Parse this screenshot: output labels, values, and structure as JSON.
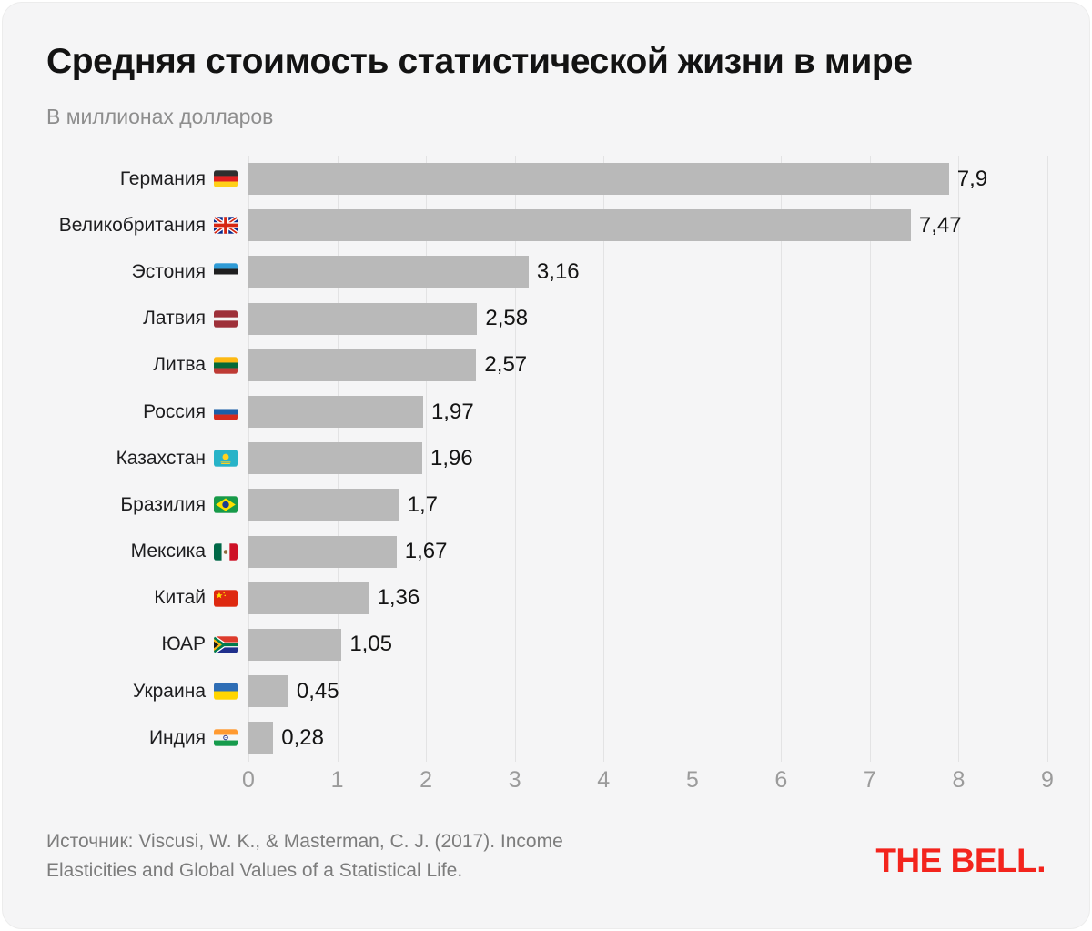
{
  "chart_data": {
    "type": "bar",
    "orientation": "horizontal",
    "title": "Средняя стоимость статистической жизни в мире",
    "subtitle": "В миллионах долларов",
    "categories": [
      "Германия",
      "Великобритания",
      "Эстония",
      "Латвия",
      "Литва",
      "Россия",
      "Казахстан",
      "Бразилия",
      "Мексика",
      "Китай",
      "ЮАР",
      "Украина",
      "Индия"
    ],
    "values": [
      7.9,
      7.47,
      3.16,
      2.58,
      2.57,
      1.97,
      1.96,
      1.7,
      1.67,
      1.36,
      1.05,
      0.45,
      0.28
    ],
    "value_labels": [
      "7,9",
      "7,47",
      "3,16",
      "2,58",
      "2,57",
      "1,97",
      "1,96",
      "1,7",
      "1,67",
      "1,36",
      "1,05",
      "0,45",
      "0,28"
    ],
    "flag_keys": [
      "germany",
      "uk",
      "estonia",
      "latvia",
      "lithuania",
      "russia",
      "kazakhstan",
      "brazil",
      "mexico",
      "china",
      "south-africa",
      "ukraine",
      "india"
    ],
    "xlabel": "",
    "ylabel": "",
    "xlim": [
      0,
      9
    ],
    "x_ticks": [
      0,
      1,
      2,
      3,
      4,
      5,
      6,
      7,
      8,
      9
    ],
    "grid": true,
    "legend": false,
    "bar_color": "#b9b9b9",
    "grid_color": "#e3e3e4"
  },
  "footer": {
    "source": "Источник: Viscusi, W. K., & Masterman, C. J. (2017). Income Elasticities and Global Values of a Statistical Life.",
    "logo": "THE BELL.",
    "logo_color": "#f3241d"
  }
}
